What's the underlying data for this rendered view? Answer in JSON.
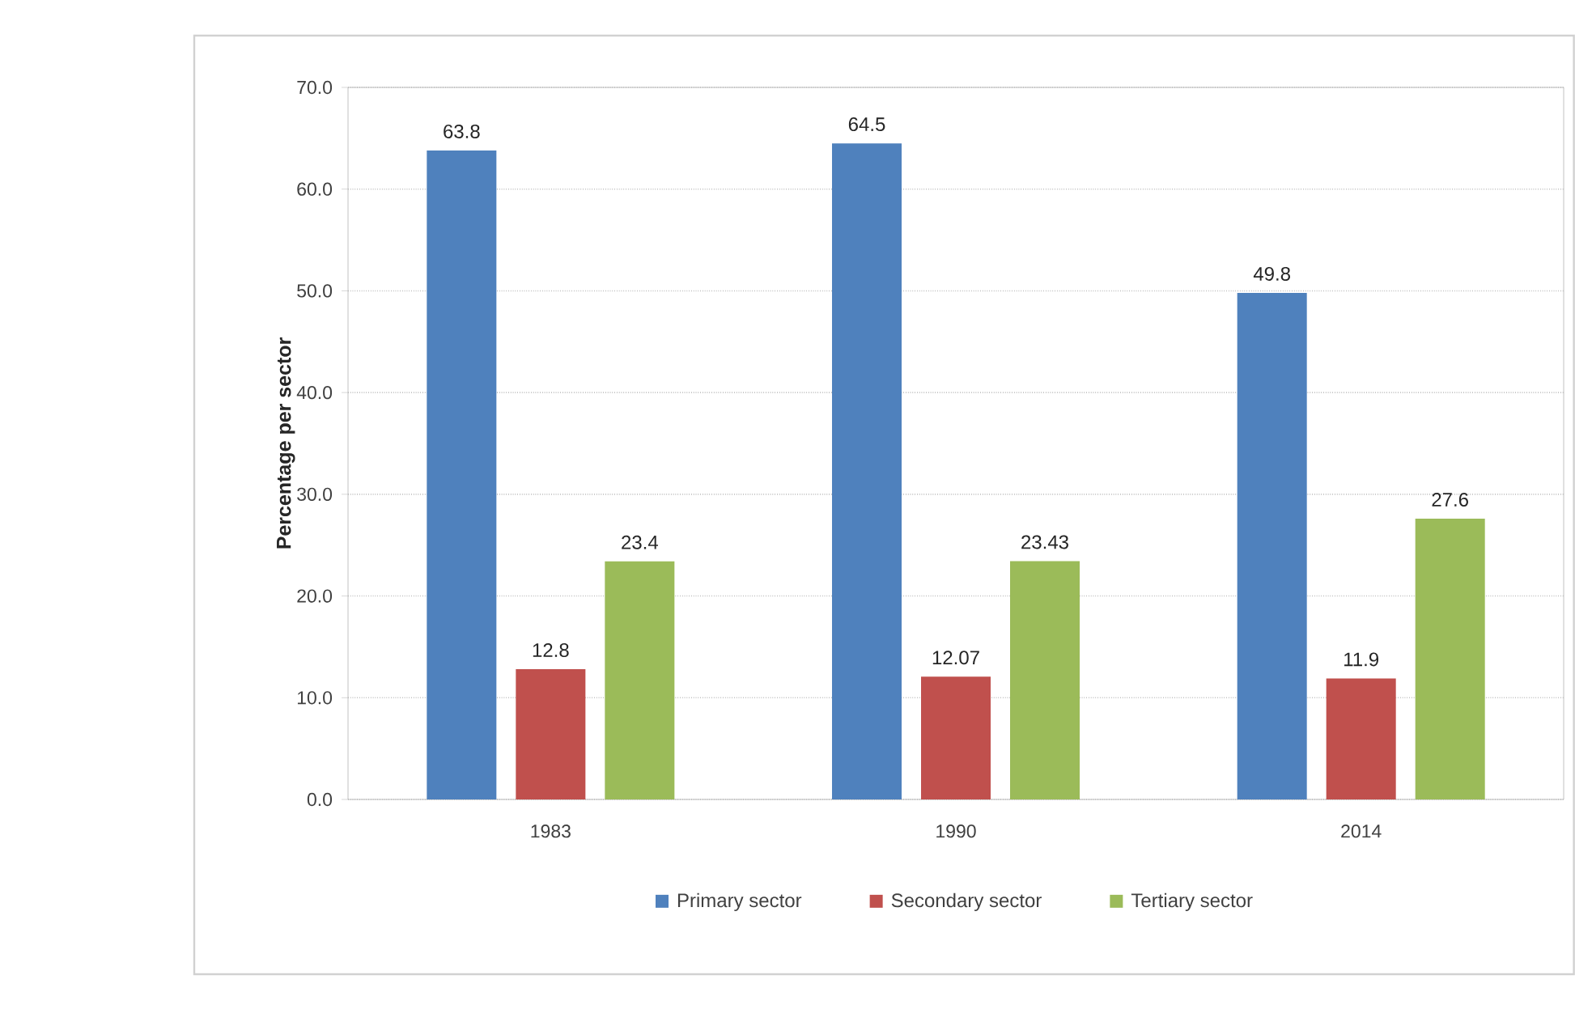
{
  "chart_data": {
    "type": "bar",
    "categories": [
      "1983",
      "1990",
      "2014"
    ],
    "ylabel": "Percentage per sector",
    "ylim": [
      0,
      70
    ],
    "yticks": [
      {
        "value": 0,
        "label": "0.0"
      },
      {
        "value": 10,
        "label": "10.0"
      },
      {
        "value": 20,
        "label": "20.0"
      },
      {
        "value": 30,
        "label": "30.0"
      },
      {
        "value": 40,
        "label": "40.0"
      },
      {
        "value": 50,
        "label": "50.0"
      },
      {
        "value": 60,
        "label": "60.0"
      },
      {
        "value": 70,
        "label": "70.0"
      }
    ],
    "grid": "y",
    "legend": "bottom",
    "data_labels": true,
    "series": [
      {
        "name": "Primary sector",
        "color": "#4f81bd",
        "values": [
          63.8,
          64.5,
          49.8
        ]
      },
      {
        "name": "Secondary sector",
        "color": "#c0504d",
        "values": [
          12.8,
          12.07,
          11.9
        ]
      },
      {
        "name": "Tertiary sector",
        "color": "#9bbb59",
        "values": [
          23.4,
          23.43,
          27.6
        ]
      }
    ]
  }
}
